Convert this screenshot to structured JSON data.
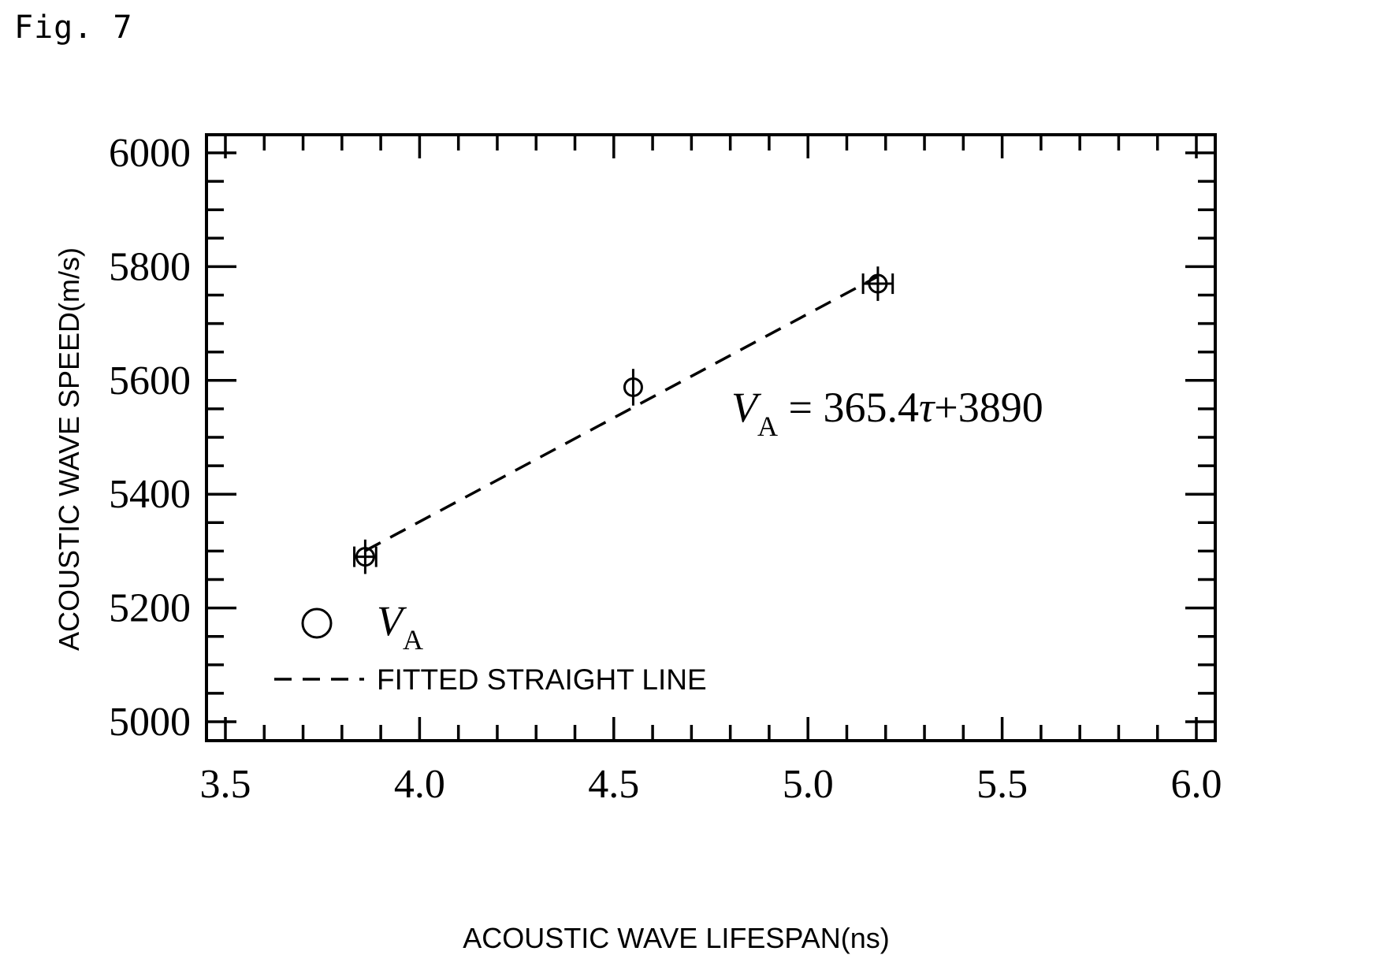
{
  "figure_label": "Fig. 7",
  "chart_data": {
    "type": "scatter",
    "title": "",
    "xlabel": "ACOUSTIC  WAVE LIFESPAN(ns)",
    "ylabel": "ACOUSTIC WAVE SPEED(m/s)",
    "xlim": [
      3.5,
      6.0
    ],
    "ylim": [
      5000,
      6000
    ],
    "x_ticks": [
      "3.5",
      "4.0",
      "4.5",
      "5.0",
      "5.5",
      "6.0"
    ],
    "y_ticks": [
      "5000",
      "5200",
      "5400",
      "5600",
      "5800",
      "6000"
    ],
    "grid": false,
    "series": [
      {
        "name": "VA",
        "marker": "open-circle",
        "points": [
          {
            "x": 3.86,
            "y": 5290,
            "x_err": 0.02,
            "y_err": 15
          },
          {
            "x": 4.55,
            "y": 5588,
            "x_err": 0.0,
            "y_err": 17
          },
          {
            "x": 5.18,
            "y": 5770,
            "x_err": 0.03,
            "y_err": 15
          }
        ]
      }
    ],
    "fit_line": {
      "name": "FITTED STRAIGHT LINE",
      "style": "dashed",
      "slope": 365.4,
      "intercept": 3890,
      "x_range": [
        3.86,
        5.18
      ]
    },
    "annotation": {
      "prefix": "V",
      "subscript": "A",
      "equation_text": " = 365.4",
      "tau": "τ",
      "suffix": "+3890"
    },
    "legend": {
      "placement": "bottom-left",
      "marker_label_main": "V",
      "marker_label_sub": "A",
      "line_label": "FITTED STRAIGHT LINE"
    }
  }
}
